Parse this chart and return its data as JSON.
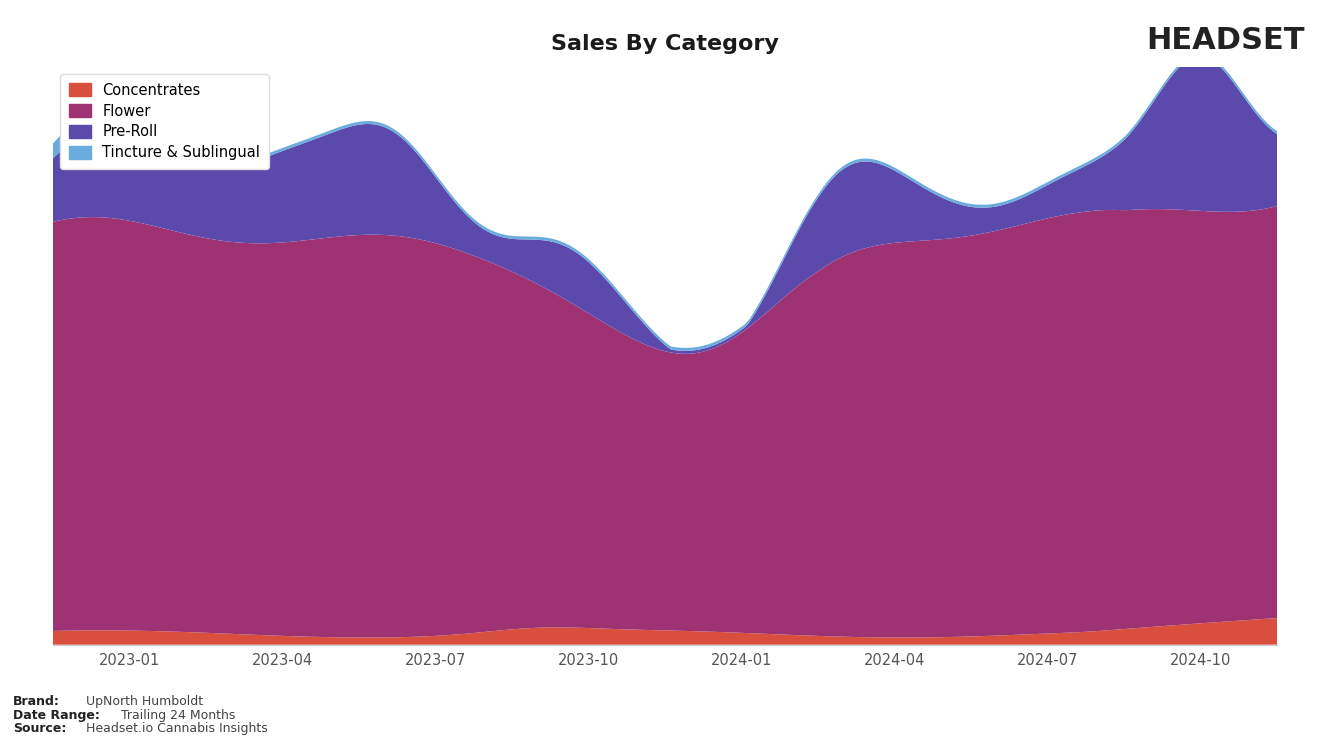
{
  "title": "Sales By Category",
  "categories": [
    "Concentrates",
    "Flower",
    "Pre-Roll",
    "Tincture & Sublingual"
  ],
  "colors": {
    "Concentrates": "#d94f3d",
    "Flower": "#9e3272",
    "Pre-Roll": "#5b4aac",
    "Tincture & Sublingual": "#6aacdd"
  },
  "x_tick_labels": [
    "2023-01",
    "2023-04",
    "2023-07",
    "2023-10",
    "2024-01",
    "2024-04",
    "2024-07",
    "2024-10"
  ],
  "background_color": "#ffffff",
  "footer_brand": "Brand:",
  "footer_brand_value": "UpNorth Humboldt",
  "footer_daterange": "Date Range:",
  "footer_daterange_value": "Trailing 24 Months",
  "footer_source": "Source:",
  "footer_source_value": "Headset.io Cannabis Insights",
  "title_fontsize": 16
}
